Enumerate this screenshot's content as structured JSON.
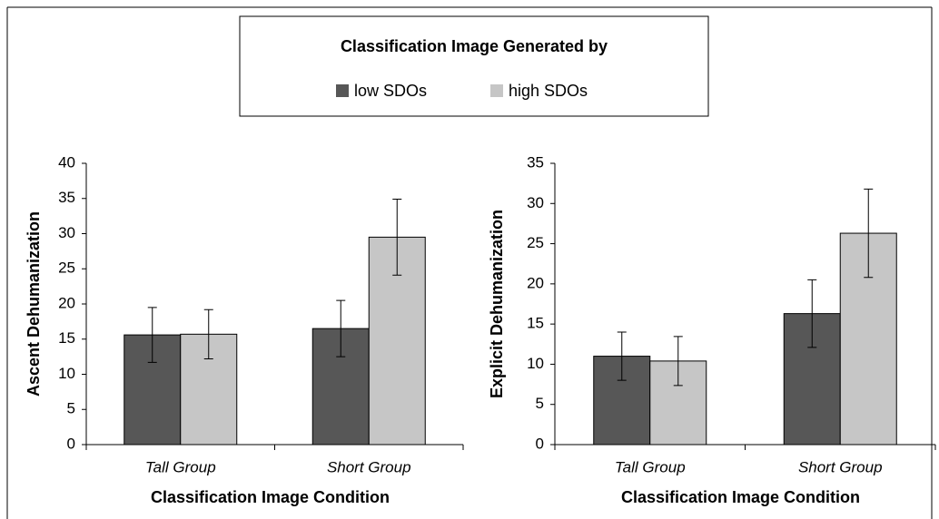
{
  "legend": {
    "title": "Classification Image Generated by",
    "entries": [
      {
        "name": "low SDOs",
        "color": "#575757"
      },
      {
        "name": "high SDOs",
        "color": "#c6c6c6"
      }
    ]
  },
  "chart_data": [
    {
      "type": "bar",
      "y_label": "Ascent Dehumanization",
      "x_label": "Classification Image Condition",
      "categories": [
        "Tall Group",
        "Short Group"
      ],
      "series": [
        {
          "values": [
            15.6,
            16.5
          ],
          "errors": [
            3.9,
            4.0
          ]
        },
        {
          "values": [
            15.7,
            29.5
          ],
          "errors": [
            3.5,
            5.4
          ]
        }
      ],
      "ylim": [
        0,
        40
      ],
      "yticks": [
        0,
        5,
        10,
        15,
        20,
        25,
        30,
        35,
        40
      ]
    },
    {
      "type": "bar",
      "y_label": "Explicit Dehumanization",
      "x_label": "Classification Image Condition",
      "categories": [
        "Tall Group",
        "Short Group"
      ],
      "series": [
        {
          "values": [
            11.0,
            16.3
          ],
          "errors": [
            3.0,
            4.2
          ]
        },
        {
          "values": [
            10.4,
            26.3
          ],
          "errors": [
            3.05,
            5.5
          ]
        }
      ],
      "ylim": [
        0,
        35
      ],
      "yticks": [
        0,
        5,
        10,
        15,
        20,
        25,
        30,
        35
      ]
    }
  ]
}
